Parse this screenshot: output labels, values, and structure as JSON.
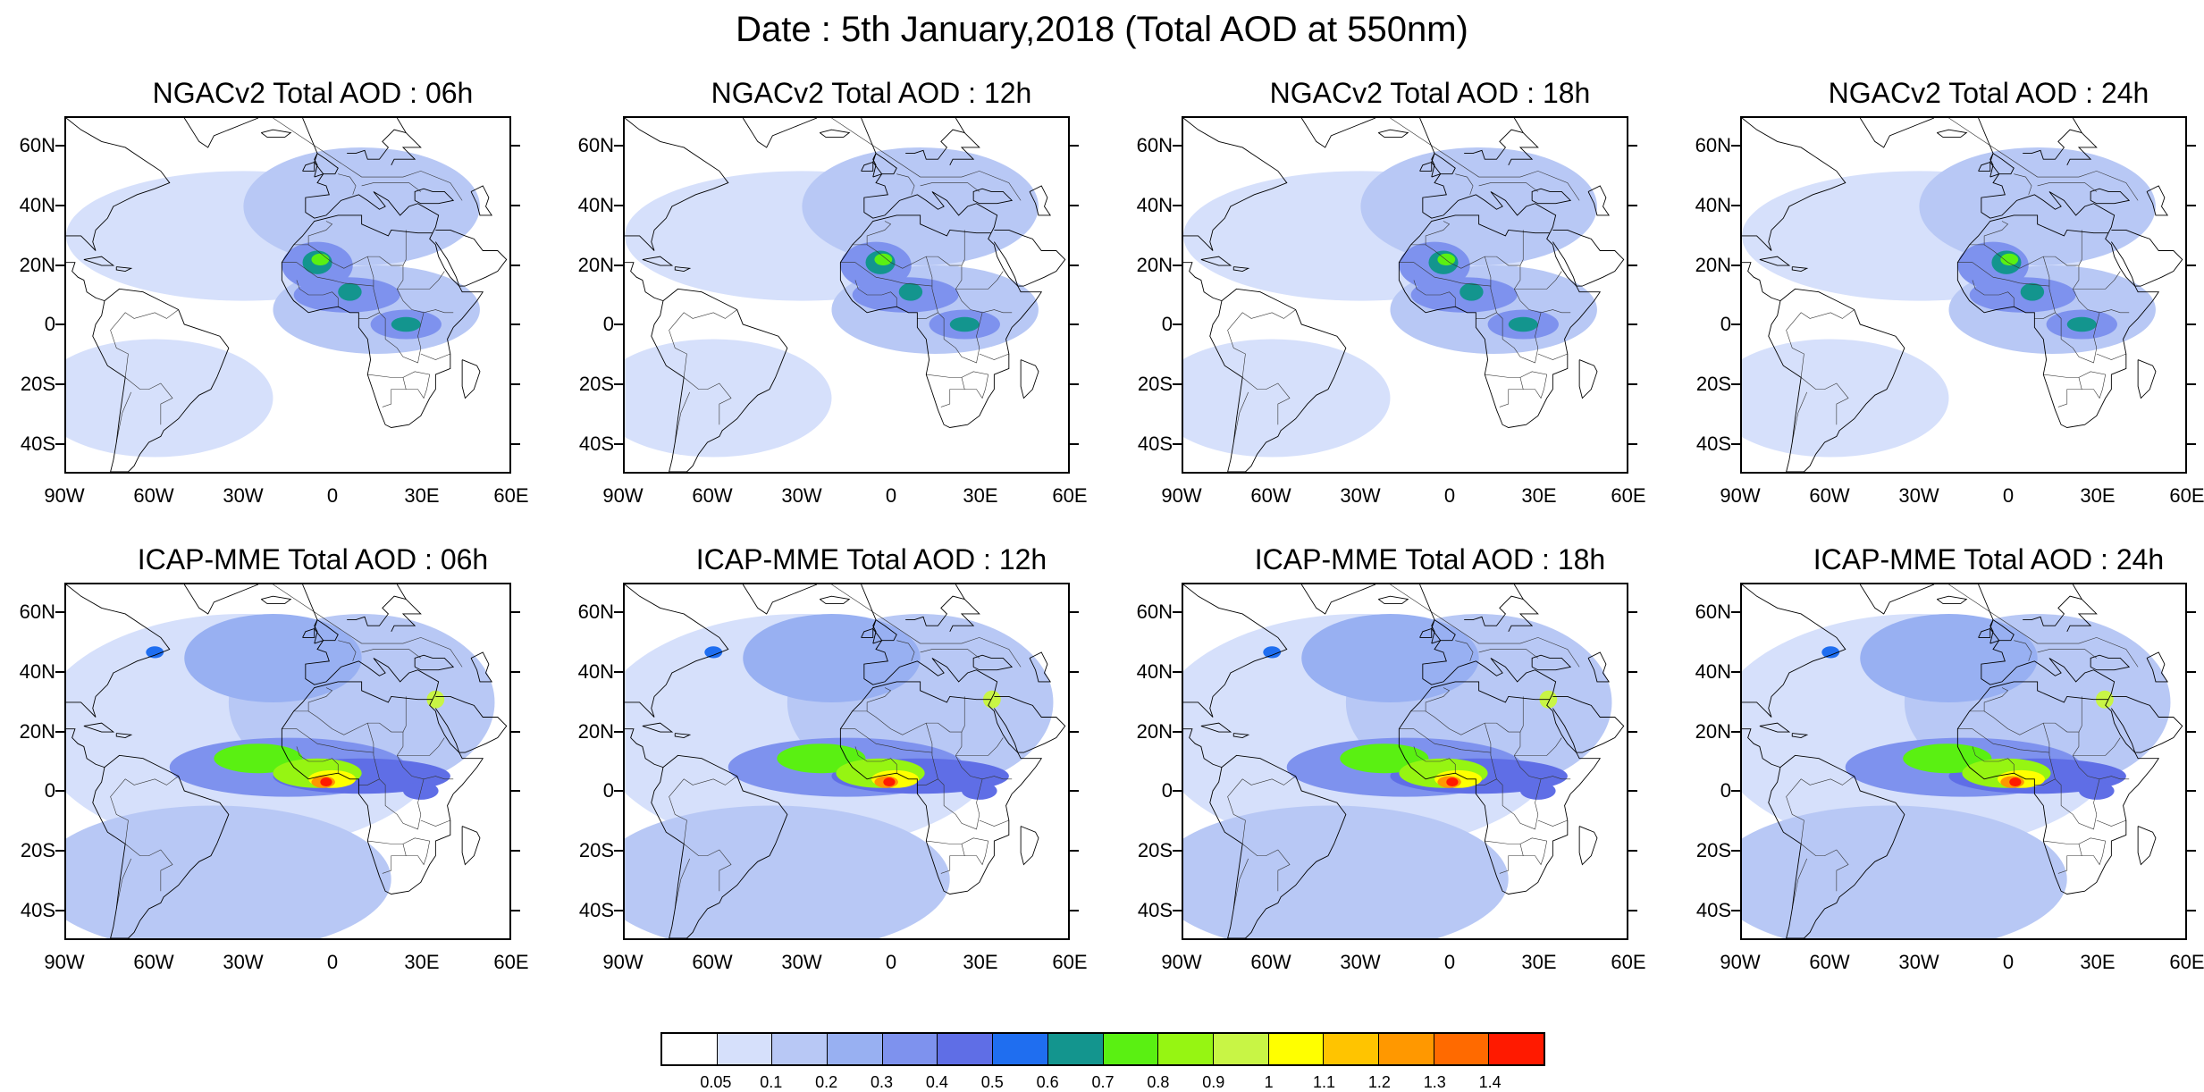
{
  "title": "Date : 5th January,2018 (Total AOD at 550nm)",
  "panels": [
    {
      "title": "NGACv2 Total AOD : 06h",
      "model": "NGACv2",
      "lead": "06h"
    },
    {
      "title": "NGACv2 Total AOD : 12h",
      "model": "NGACv2",
      "lead": "12h"
    },
    {
      "title": "NGACv2 Total AOD : 18h",
      "model": "NGACv2",
      "lead": "18h"
    },
    {
      "title": "NGACv2 Total AOD : 24h",
      "model": "NGACv2",
      "lead": "24h"
    },
    {
      "title": "ICAP-MME Total AOD : 06h",
      "model": "ICAP-MME",
      "lead": "06h"
    },
    {
      "title": "ICAP-MME Total AOD : 12h",
      "model": "ICAP-MME",
      "lead": "12h"
    },
    {
      "title": "ICAP-MME Total AOD : 18h",
      "model": "ICAP-MME",
      "lead": "18h"
    },
    {
      "title": "ICAP-MME Total AOD : 24h",
      "model": "ICAP-MME",
      "lead": "24h"
    }
  ],
  "lat_ticks": [
    "60N",
    "40N",
    "20N",
    "0",
    "20S",
    "40S"
  ],
  "lon_ticks": [
    "90W",
    "60W",
    "30W",
    "0",
    "30E",
    "60E"
  ],
  "extent": {
    "lon_min": -90,
    "lon_max": 60,
    "lat_min": -50,
    "lat_max": 70
  },
  "colorbar": {
    "labels": [
      "0.05",
      "0.1",
      "0.2",
      "0.3",
      "0.4",
      "0.5",
      "0.6",
      "0.7",
      "0.8",
      "0.9",
      "1",
      "1.1",
      "1.2",
      "1.3",
      "1.4"
    ],
    "colors": [
      "#ffffff",
      "#d6e0fb",
      "#b8c8f5",
      "#98b0f2",
      "#7e92ee",
      "#5f6ee6",
      "#1f6ef0",
      "#13958e",
      "#5af012",
      "#96f512",
      "#c8f545",
      "#ffff00",
      "#ffc400",
      "#ff9800",
      "#ff6a00",
      "#ff1a00"
    ]
  }
}
